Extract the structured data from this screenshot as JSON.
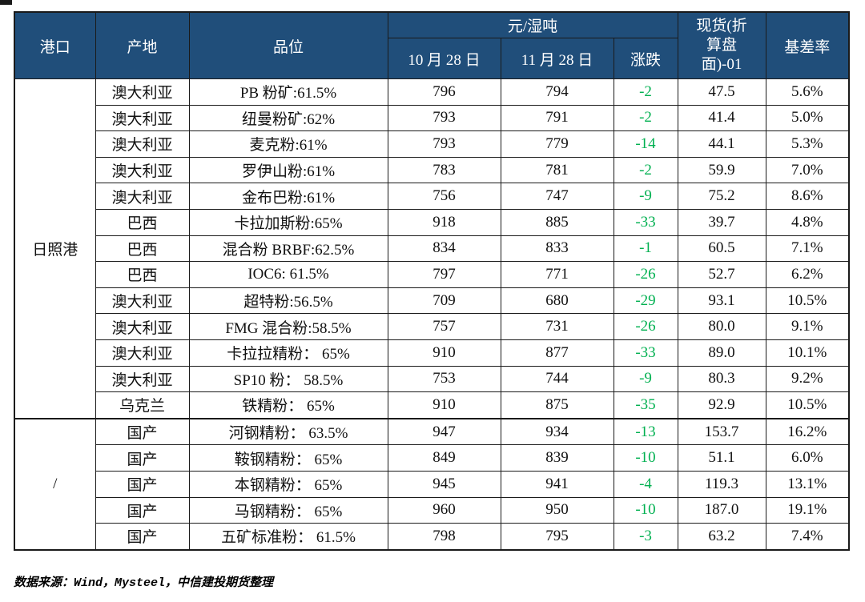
{
  "colors": {
    "header_bg": "#204E7A",
    "change_green": "#00B050",
    "border": "#1a1a1a"
  },
  "table": {
    "headers": {
      "port": "港口",
      "origin": "产地",
      "grade": "品位",
      "unit_group": "元/湿吨",
      "date1": "10 月 28 日",
      "date2": "11 月 28 日",
      "change": "涨跌",
      "spot": "现货(折算盘面)-01",
      "basis_rate": "基差率"
    },
    "port_groups": [
      {
        "port": "日照港",
        "rows": 13
      },
      {
        "port": "/",
        "rows": 5
      }
    ],
    "rows": [
      {
        "origin": "澳大利亚",
        "grade": "PB 粉矿:61.5%",
        "oct": "796",
        "nov": "794",
        "change": "-2",
        "spot": "47.5",
        "basis": "5.6%"
      },
      {
        "origin": "澳大利亚",
        "grade": "纽曼粉矿:62%",
        "oct": "793",
        "nov": "791",
        "change": "-2",
        "spot": "41.4",
        "basis": "5.0%"
      },
      {
        "origin": "澳大利亚",
        "grade": "麦克粉:61%",
        "oct": "793",
        "nov": "779",
        "change": "-14",
        "spot": "44.1",
        "basis": "5.3%"
      },
      {
        "origin": "澳大利亚",
        "grade": "罗伊山粉:61%",
        "oct": "783",
        "nov": "781",
        "change": "-2",
        "spot": "59.9",
        "basis": "7.0%"
      },
      {
        "origin": "澳大利亚",
        "grade": "金布巴粉:61%",
        "oct": "756",
        "nov": "747",
        "change": "-9",
        "spot": "75.2",
        "basis": "8.6%"
      },
      {
        "origin": "巴西",
        "grade": "卡拉加斯粉:65%",
        "oct": "918",
        "nov": "885",
        "change": "-33",
        "spot": "39.7",
        "basis": "4.8%"
      },
      {
        "origin": "巴西",
        "grade": "混合粉 BRBF:62.5%",
        "oct": "834",
        "nov": "833",
        "change": "-1",
        "spot": "60.5",
        "basis": "7.1%"
      },
      {
        "origin": "巴西",
        "grade": "IOC6: 61.5%",
        "oct": "797",
        "nov": "771",
        "change": "-26",
        "spot": "52.7",
        "basis": "6.2%"
      },
      {
        "origin": "澳大利亚",
        "grade": "超特粉:56.5%",
        "oct": "709",
        "nov": "680",
        "change": "-29",
        "spot": "93.1",
        "basis": "10.5%"
      },
      {
        "origin": "澳大利亚",
        "grade": "FMG 混合粉:58.5%",
        "oct": "757",
        "nov": "731",
        "change": "-26",
        "spot": "80.0",
        "basis": "9.1%"
      },
      {
        "origin": "澳大利亚",
        "grade": "卡拉拉精粉： 65%",
        "oct": "910",
        "nov": "877",
        "change": "-33",
        "spot": "89.0",
        "basis": "10.1%"
      },
      {
        "origin": "澳大利亚",
        "grade": "SP10 粉： 58.5%",
        "oct": "753",
        "nov": "744",
        "change": "-9",
        "spot": "80.3",
        "basis": "9.2%"
      },
      {
        "origin": "乌克兰",
        "grade": "铁精粉： 65%",
        "oct": "910",
        "nov": "875",
        "change": "-35",
        "spot": "92.9",
        "basis": "10.5%"
      },
      {
        "origin": "国产",
        "grade": "河钢精粉： 63.5%",
        "oct": "947",
        "nov": "934",
        "change": "-13",
        "spot": "153.7",
        "basis": "16.2%"
      },
      {
        "origin": "国产",
        "grade": "鞍钢精粉： 65%",
        "oct": "849",
        "nov": "839",
        "change": "-10",
        "spot": "51.1",
        "basis": "6.0%"
      },
      {
        "origin": "国产",
        "grade": "本钢精粉： 65%",
        "oct": "945",
        "nov": "941",
        "change": "-4",
        "spot": "119.3",
        "basis": "13.1%"
      },
      {
        "origin": "国产",
        "grade": "马钢精粉： 65%",
        "oct": "960",
        "nov": "950",
        "change": "-10",
        "spot": "187.0",
        "basis": "19.1%"
      },
      {
        "origin": "国产",
        "grade": "五矿标准粉： 61.5%",
        "oct": "798",
        "nov": "795",
        "change": "-3",
        "spot": "63.2",
        "basis": "7.4%"
      }
    ]
  },
  "footer": {
    "source": "数据来源：Wind，Mysteel，中信建投期货整理"
  }
}
